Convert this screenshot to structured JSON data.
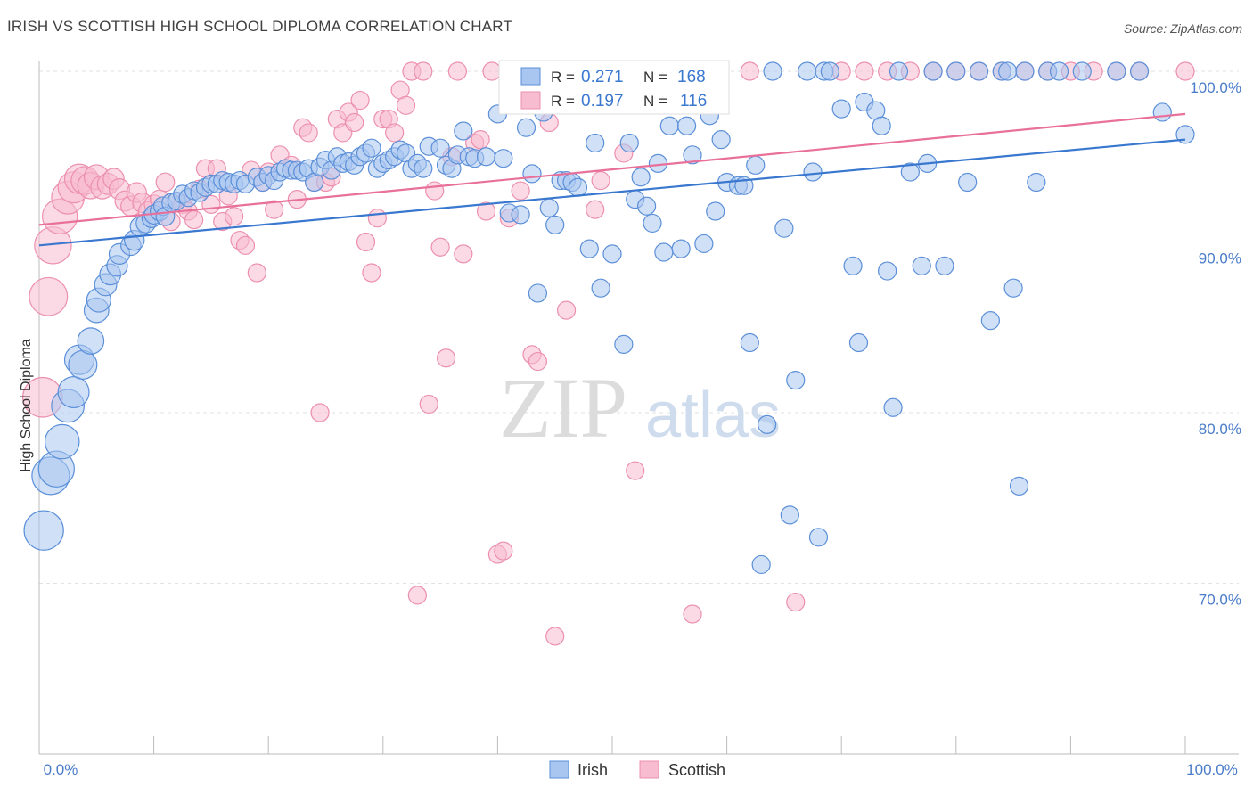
{
  "header": {
    "title": "IRISH VS SCOTTISH HIGH SCHOOL DIPLOMA CORRELATION CHART",
    "source": "Source: ZipAtlas.com"
  },
  "watermark": {
    "zip": "ZIP",
    "atlas": "atlas"
  },
  "stats": [
    {
      "r_label": "R = ",
      "r_value": "0.271",
      "n_label": "N = ",
      "n_value": "168"
    },
    {
      "r_label": "R = ",
      "r_value": "0.197",
      "n_label": "N = ",
      "n_value": "116"
    }
  ],
  "legend": {
    "items": [
      "Irish",
      "Scottish"
    ]
  },
  "colors": {
    "irish_fill": "#a9c6f0",
    "irish_stroke": "#5b8fd8",
    "irish_line": "#3a78d0",
    "scottish_fill": "#f7bccf",
    "scottish_stroke": "#ec8fae",
    "scottish_line": "#e8709a",
    "value_text": "#3a78d0",
    "axis_text": "#4a7cc9"
  },
  "chart_data": {
    "type": "scatter",
    "title": "IRISH VS SCOTTISH HIGH SCHOOL DIPLOMA CORRELATION CHART",
    "xlabel": "",
    "ylabel": "High School Diploma",
    "xlim": [
      0,
      100
    ],
    "ylim": [
      60,
      100
    ],
    "x_tick_labels": [
      "0.0%",
      "100.0%"
    ],
    "y_ticks": [
      70,
      80,
      90,
      100
    ],
    "y_tick_labels": [
      "70.0%",
      "80.0%",
      "90.0%",
      "100.0%"
    ],
    "grid": "horizontal dashed",
    "legend_position": "bottom-center",
    "series": [
      {
        "name": "Irish",
        "trend": {
          "x": [
            0,
            100
          ],
          "y": [
            89.8,
            96.0
          ]
        },
        "points": [
          [
            0.4,
            73.1
          ],
          [
            1,
            76.3
          ],
          [
            1.5,
            76.7
          ],
          [
            2,
            78.3
          ],
          [
            2.5,
            80.4
          ],
          [
            3,
            81.2
          ],
          [
            3.5,
            83.1
          ],
          [
            3.8,
            82.8
          ],
          [
            4.5,
            84.2
          ],
          [
            5,
            86
          ],
          [
            5.2,
            86.6
          ],
          [
            5.8,
            87.5
          ],
          [
            6.2,
            88.1
          ],
          [
            6.8,
            88.6
          ],
          [
            7,
            89.3
          ],
          [
            8,
            89.8
          ],
          [
            8.3,
            90.1
          ],
          [
            8.8,
            90.9
          ],
          [
            9.3,
            91.1
          ],
          [
            9.8,
            91.4
          ],
          [
            10,
            91.6
          ],
          [
            10.5,
            91.8
          ],
          [
            10.8,
            92.1
          ],
          [
            11,
            91.5
          ],
          [
            11.5,
            92.3
          ],
          [
            12,
            92.4
          ],
          [
            12.5,
            92.8
          ],
          [
            13,
            92.6
          ],
          [
            13.5,
            93
          ],
          [
            14,
            92.9
          ],
          [
            14.5,
            93.2
          ],
          [
            15,
            93.4
          ],
          [
            15.5,
            93.4
          ],
          [
            16,
            93.6
          ],
          [
            16.5,
            93.5
          ],
          [
            17,
            93.4
          ],
          [
            17.5,
            93.6
          ],
          [
            18,
            93.4
          ],
          [
            19,
            93.8
          ],
          [
            19.5,
            93.5
          ],
          [
            20,
            93.9
          ],
          [
            20.5,
            93.6
          ],
          [
            21,
            94.1
          ],
          [
            21.5,
            94.3
          ],
          [
            22,
            94.2
          ],
          [
            22.5,
            94.2
          ],
          [
            23,
            94.1
          ],
          [
            23.5,
            94.3
          ],
          [
            24,
            93.5
          ],
          [
            24.5,
            94.4
          ],
          [
            25,
            94.8
          ],
          [
            25.5,
            94.2
          ],
          [
            26,
            95
          ],
          [
            26.5,
            94.6
          ],
          [
            27,
            94.7
          ],
          [
            27.5,
            94.5
          ],
          [
            28,
            95
          ],
          [
            28.5,
            95.2
          ],
          [
            29,
            95.5
          ],
          [
            29.5,
            94.3
          ],
          [
            30,
            94.6
          ],
          [
            30.5,
            94.8
          ],
          [
            31,
            95
          ],
          [
            31.5,
            95.4
          ],
          [
            32,
            95.2
          ],
          [
            32.5,
            94.3
          ],
          [
            33,
            94.6
          ],
          [
            33.5,
            94.3
          ],
          [
            34,
            95.6
          ],
          [
            35,
            95.5
          ],
          [
            35.5,
            94.5
          ],
          [
            36,
            94.3
          ],
          [
            36.5,
            95.1
          ],
          [
            37,
            96.5
          ],
          [
            37.5,
            95
          ],
          [
            38,
            94.9
          ],
          [
            39,
            95
          ],
          [
            40,
            97.5
          ],
          [
            40.5,
            94.9
          ],
          [
            41,
            91.7
          ],
          [
            42,
            91.6
          ],
          [
            42.5,
            96.7
          ],
          [
            43,
            94
          ],
          [
            43.5,
            87
          ],
          [
            44,
            97.6
          ],
          [
            44.5,
            92
          ],
          [
            45,
            91
          ],
          [
            45.5,
            93.6
          ],
          [
            46,
            93.6
          ],
          [
            46.5,
            93.5
          ],
          [
            47,
            93.2
          ],
          [
            48,
            89.6
          ],
          [
            48.5,
            95.8
          ],
          [
            49,
            87.3
          ],
          [
            50,
            89.3
          ],
          [
            51,
            84
          ],
          [
            51.5,
            95.8
          ],
          [
            52,
            92.5
          ],
          [
            52.5,
            93.8
          ],
          [
            53,
            92.1
          ],
          [
            53.5,
            91.1
          ],
          [
            54,
            94.6
          ],
          [
            54.5,
            89.4
          ],
          [
            55,
            96.8
          ],
          [
            56,
            89.6
          ],
          [
            56.5,
            96.8
          ],
          [
            57,
            95.1
          ],
          [
            58,
            89.9
          ],
          [
            58.5,
            97.4
          ],
          [
            59,
            91.8
          ],
          [
            59.5,
            96
          ],
          [
            60,
            93.5
          ],
          [
            61,
            93.3
          ],
          [
            61.5,
            93.3
          ],
          [
            62,
            84.1
          ],
          [
            62.5,
            94.5
          ],
          [
            63,
            71.1
          ],
          [
            63.5,
            79.3
          ],
          [
            64,
            100
          ],
          [
            65,
            90.8
          ],
          [
            65.5,
            74
          ],
          [
            66,
            81.9
          ],
          [
            67,
            100
          ],
          [
            67.5,
            94.1
          ],
          [
            68,
            72.7
          ],
          [
            68.5,
            100
          ],
          [
            69,
            100
          ],
          [
            70,
            97.8
          ],
          [
            71,
            88.6
          ],
          [
            71.5,
            84.1
          ],
          [
            72,
            98.2
          ],
          [
            73,
            97.7
          ],
          [
            73.5,
            96.8
          ],
          [
            74,
            88.3
          ],
          [
            74.5,
            80.3
          ],
          [
            75,
            100
          ],
          [
            76,
            94.1
          ],
          [
            77,
            88.6
          ],
          [
            77.5,
            94.6
          ],
          [
            78,
            100
          ],
          [
            79,
            88.6
          ],
          [
            80,
            100
          ],
          [
            81,
            93.5
          ],
          [
            82,
            100
          ],
          [
            83,
            85.4
          ],
          [
            84,
            100
          ],
          [
            84.5,
            100
          ],
          [
            85,
            87.3
          ],
          [
            85.5,
            75.7
          ],
          [
            86,
            100
          ],
          [
            87,
            93.5
          ],
          [
            88,
            100
          ],
          [
            89,
            100
          ],
          [
            91,
            100
          ],
          [
            94,
            100
          ],
          [
            96,
            100
          ],
          [
            98,
            97.6
          ],
          [
            100,
            96.3
          ]
        ]
      },
      {
        "name": "Scottish",
        "trend": {
          "x": [
            0,
            100
          ],
          "y": [
            91.0,
            97.5
          ]
        },
        "points": [
          [
            0.3,
            80.9
          ],
          [
            0.8,
            86.8
          ],
          [
            1.2,
            89.8
          ],
          [
            1.8,
            91.5
          ],
          [
            2.5,
            92.6
          ],
          [
            3,
            93.2
          ],
          [
            3.5,
            93.7
          ],
          [
            4,
            93.6
          ],
          [
            4.5,
            93.3
          ],
          [
            5,
            93.8
          ],
          [
            5.5,
            93.2
          ],
          [
            6,
            93.4
          ],
          [
            6.5,
            93.7
          ],
          [
            7,
            93.1
          ],
          [
            7.5,
            92.4
          ],
          [
            8,
            92.1
          ],
          [
            8.5,
            92.9
          ],
          [
            9,
            92.3
          ],
          [
            9.5,
            91.8
          ],
          [
            10,
            92.2
          ],
          [
            10.5,
            92.5
          ],
          [
            11,
            93.5
          ],
          [
            11.5,
            91.2
          ],
          [
            12,
            92.4
          ],
          [
            12.5,
            92.2
          ],
          [
            13,
            91.8
          ],
          [
            13.5,
            91.3
          ],
          [
            14,
            93.1
          ],
          [
            14.5,
            94.3
          ],
          [
            15,
            92.2
          ],
          [
            15.5,
            94.3
          ],
          [
            16,
            91.2
          ],
          [
            16.5,
            92.7
          ],
          [
            17,
            91.5
          ],
          [
            17.5,
            90.1
          ],
          [
            18,
            89.8
          ],
          [
            18.5,
            94.2
          ],
          [
            19,
            88.2
          ],
          [
            19.5,
            93.5
          ],
          [
            20,
            94.1
          ],
          [
            20.5,
            91.9
          ],
          [
            21,
            95.1
          ],
          [
            22,
            94.5
          ],
          [
            22.5,
            92.5
          ],
          [
            23,
            96.7
          ],
          [
            23.5,
            96.4
          ],
          [
            24,
            93.5
          ],
          [
            24.5,
            80
          ],
          [
            25,
            93.5
          ],
          [
            25.5,
            93.8
          ],
          [
            26,
            97.2
          ],
          [
            26.5,
            96.4
          ],
          [
            27,
            97.6
          ],
          [
            27.5,
            97
          ],
          [
            28,
            98.3
          ],
          [
            28.5,
            90
          ],
          [
            29,
            88.2
          ],
          [
            29.5,
            91.4
          ],
          [
            30,
            97.2
          ],
          [
            30.5,
            97.2
          ],
          [
            31,
            96.4
          ],
          [
            31.5,
            98.9
          ],
          [
            32,
            98
          ],
          [
            32.5,
            100
          ],
          [
            33,
            69.3
          ],
          [
            33.5,
            100
          ],
          [
            34,
            80.5
          ],
          [
            34.5,
            93
          ],
          [
            35,
            89.7
          ],
          [
            35.5,
            83.2
          ],
          [
            36,
            95
          ],
          [
            36.5,
            100
          ],
          [
            37,
            89.3
          ],
          [
            38,
            95.8
          ],
          [
            38.5,
            96
          ],
          [
            39,
            91.8
          ],
          [
            39.5,
            100
          ],
          [
            40,
            71.7
          ],
          [
            40.5,
            71.9
          ],
          [
            41,
            91.4
          ],
          [
            41.5,
            100
          ],
          [
            42,
            93
          ],
          [
            42.5,
            100
          ],
          [
            43,
            83.4
          ],
          [
            43.5,
            83
          ],
          [
            44,
            100
          ],
          [
            44.5,
            97
          ],
          [
            45,
            66.9
          ],
          [
            45.5,
            100
          ],
          [
            46,
            86
          ],
          [
            46.5,
            100
          ],
          [
            47,
            100
          ],
          [
            48,
            100
          ],
          [
            48.5,
            91.9
          ],
          [
            49,
            93.6
          ],
          [
            50,
            100
          ],
          [
            51,
            95.2
          ],
          [
            52,
            76.6
          ],
          [
            52.5,
            100
          ],
          [
            53,
            100
          ],
          [
            55,
            100
          ],
          [
            57,
            68.2
          ],
          [
            58,
            100
          ],
          [
            62,
            100
          ],
          [
            66,
            68.9
          ],
          [
            70,
            100
          ],
          [
            72,
            100
          ],
          [
            74,
            100
          ],
          [
            76,
            100
          ],
          [
            78,
            100
          ],
          [
            80,
            100
          ],
          [
            82,
            100
          ],
          [
            84,
            100
          ],
          [
            86,
            100
          ],
          [
            88,
            100
          ],
          [
            90,
            100
          ],
          [
            92,
            100
          ],
          [
            94,
            100
          ],
          [
            96,
            100
          ],
          [
            100,
            100
          ]
        ]
      }
    ]
  }
}
